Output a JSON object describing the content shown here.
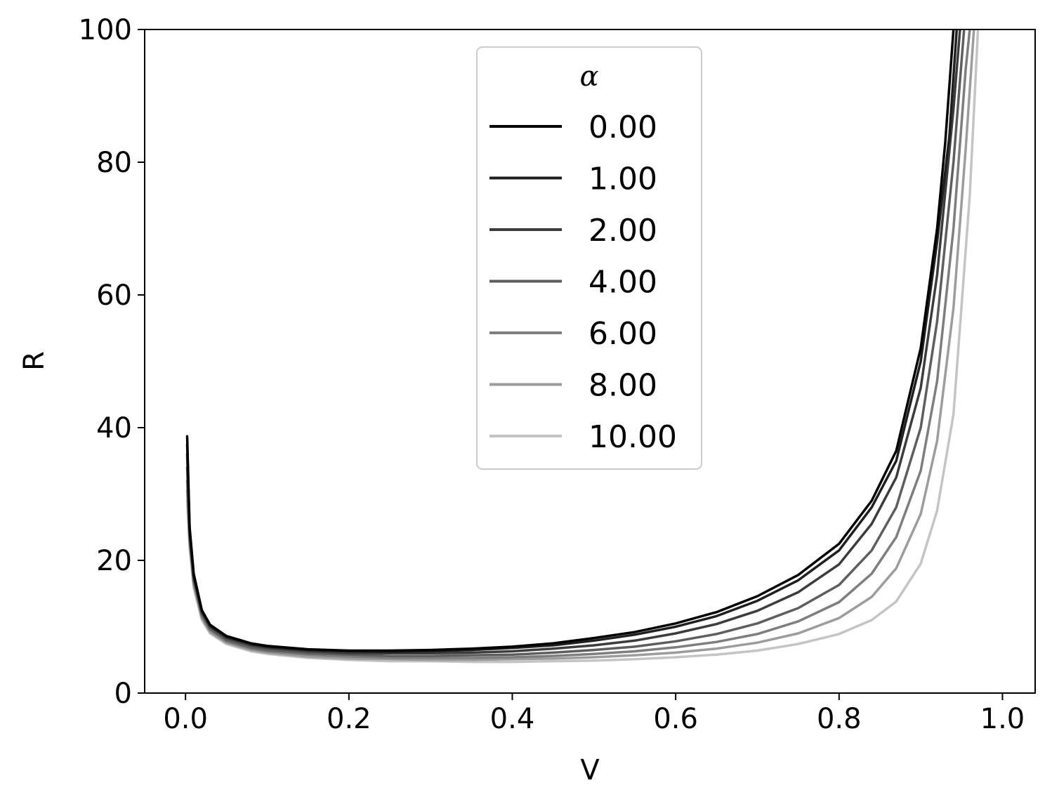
{
  "chart_data": {
    "type": "line",
    "title": "",
    "xlabel": "V",
    "ylabel": "R",
    "xlim": [
      -0.05,
      1.04
    ],
    "ylim": [
      0,
      100
    ],
    "xticks": [
      {
        "value": 0.0,
        "label": "0.0"
      },
      {
        "value": 0.2,
        "label": "0.2"
      },
      {
        "value": 0.4,
        "label": "0.4"
      },
      {
        "value": 0.6,
        "label": "0.6"
      },
      {
        "value": 0.8,
        "label": "0.8"
      },
      {
        "value": 1.0,
        "label": "1.0"
      }
    ],
    "yticks": [
      {
        "value": 0,
        "label": "0"
      },
      {
        "value": 20,
        "label": "20"
      },
      {
        "value": 40,
        "label": "40"
      },
      {
        "value": 60,
        "label": "60"
      },
      {
        "value": 80,
        "label": "80"
      },
      {
        "value": 100,
        "label": "100"
      }
    ],
    "grid": false,
    "legend": {
      "title": "α",
      "placement": "top-center"
    },
    "series": [
      {
        "name": "0.00",
        "color": "#000000",
        "x": [
          0.002,
          0.005,
          0.01,
          0.02,
          0.03,
          0.05,
          0.08,
          0.1,
          0.15,
          0.2,
          0.25,
          0.3,
          0.35,
          0.4,
          0.45,
          0.5,
          0.55,
          0.6,
          0.65,
          0.7,
          0.75,
          0.8,
          0.84,
          0.87,
          0.9,
          0.92,
          0.93,
          0.94
        ],
        "y": [
          38.7,
          25.0,
          18.0,
          12.5,
          10.3,
          8.6,
          7.5,
          7.1,
          6.6,
          6.4,
          6.4,
          6.5,
          6.7,
          7.0,
          7.5,
          8.3,
          9.2,
          10.5,
          12.2,
          14.6,
          17.8,
          22.5,
          29.0,
          36.5,
          52.0,
          70.0,
          83.0,
          100.0
        ]
      },
      {
        "name": "1.00",
        "color": "#1f1f1f",
        "x": [
          0.002,
          0.005,
          0.01,
          0.02,
          0.03,
          0.05,
          0.08,
          0.1,
          0.15,
          0.2,
          0.25,
          0.3,
          0.35,
          0.4,
          0.45,
          0.5,
          0.55,
          0.6,
          0.65,
          0.7,
          0.75,
          0.8,
          0.84,
          0.87,
          0.9,
          0.92,
          0.935,
          0.944
        ],
        "y": [
          37.5,
          24.7,
          17.8,
          12.4,
          10.2,
          8.5,
          7.4,
          7.0,
          6.5,
          6.3,
          6.2,
          6.3,
          6.5,
          6.8,
          7.2,
          7.9,
          8.8,
          10.0,
          11.6,
          13.9,
          17.0,
          21.5,
          28.0,
          35.0,
          50.0,
          68.0,
          84.0,
          100.0
        ]
      },
      {
        "name": "2.00",
        "color": "#3c3c3c",
        "x": [
          0.002,
          0.005,
          0.01,
          0.02,
          0.03,
          0.05,
          0.08,
          0.1,
          0.15,
          0.2,
          0.25,
          0.3,
          0.35,
          0.4,
          0.45,
          0.5,
          0.55,
          0.6,
          0.65,
          0.7,
          0.75,
          0.8,
          0.84,
          0.87,
          0.9,
          0.92,
          0.94,
          0.948
        ],
        "y": [
          36.0,
          24.3,
          17.5,
          12.2,
          10.0,
          8.3,
          7.2,
          6.8,
          6.3,
          6.0,
          6.0,
          6.0,
          6.1,
          6.3,
          6.7,
          7.2,
          7.9,
          9.0,
          10.4,
          12.4,
          15.2,
          19.4,
          25.5,
          32.5,
          46.0,
          63.0,
          88.0,
          100.0
        ]
      },
      {
        "name": "4.00",
        "color": "#5e5e5e",
        "x": [
          0.002,
          0.005,
          0.01,
          0.02,
          0.03,
          0.05,
          0.08,
          0.1,
          0.15,
          0.2,
          0.25,
          0.3,
          0.35,
          0.4,
          0.45,
          0.5,
          0.55,
          0.6,
          0.65,
          0.7,
          0.75,
          0.8,
          0.84,
          0.87,
          0.9,
          0.92,
          0.94,
          0.953
        ],
        "y": [
          34.0,
          23.7,
          17.1,
          11.9,
          9.7,
          8.0,
          6.9,
          6.5,
          6.0,
          5.8,
          5.6,
          5.6,
          5.7,
          5.8,
          6.1,
          6.5,
          7.0,
          7.8,
          8.9,
          10.5,
          12.8,
          16.3,
          21.5,
          28.0,
          40.0,
          56.0,
          80.0,
          100.0
        ]
      },
      {
        "name": "6.00",
        "color": "#7e7e7e",
        "x": [
          0.002,
          0.005,
          0.01,
          0.02,
          0.03,
          0.05,
          0.08,
          0.1,
          0.15,
          0.2,
          0.25,
          0.3,
          0.35,
          0.4,
          0.45,
          0.5,
          0.55,
          0.6,
          0.65,
          0.7,
          0.75,
          0.8,
          0.84,
          0.87,
          0.9,
          0.92,
          0.94,
          0.955,
          0.96
        ],
        "y": [
          32.0,
          23.1,
          16.7,
          11.6,
          9.5,
          7.8,
          6.7,
          6.3,
          5.8,
          5.5,
          5.3,
          5.3,
          5.3,
          5.4,
          5.6,
          5.9,
          6.3,
          6.9,
          7.7,
          8.9,
          10.8,
          13.7,
          18.0,
          23.5,
          33.5,
          47.0,
          70.0,
          94.0,
          100.0
        ]
      },
      {
        "name": "8.00",
        "color": "#9c9c9c",
        "x": [
          0.002,
          0.005,
          0.01,
          0.02,
          0.03,
          0.05,
          0.08,
          0.1,
          0.15,
          0.2,
          0.25,
          0.3,
          0.35,
          0.4,
          0.45,
          0.5,
          0.55,
          0.6,
          0.65,
          0.7,
          0.75,
          0.8,
          0.84,
          0.87,
          0.9,
          0.92,
          0.94,
          0.955,
          0.965
        ],
        "y": [
          30.5,
          22.5,
          16.3,
          11.3,
          9.2,
          7.6,
          6.5,
          6.1,
          5.5,
          5.2,
          5.1,
          5.0,
          5.0,
          5.1,
          5.2,
          5.4,
          5.7,
          6.1,
          6.7,
          7.6,
          9.0,
          11.3,
          14.5,
          18.8,
          27.0,
          38.0,
          58.0,
          82.0,
          100.0
        ]
      },
      {
        "name": "10.00",
        "color": "#c4c4c4",
        "x": [
          0.002,
          0.005,
          0.01,
          0.02,
          0.03,
          0.05,
          0.08,
          0.1,
          0.15,
          0.2,
          0.25,
          0.3,
          0.35,
          0.4,
          0.45,
          0.5,
          0.55,
          0.6,
          0.65,
          0.7,
          0.75,
          0.8,
          0.84,
          0.87,
          0.9,
          0.92,
          0.94,
          0.96,
          0.97
        ],
        "y": [
          29.0,
          22.0,
          15.9,
          11.0,
          9.0,
          7.4,
          6.3,
          5.9,
          5.3,
          5.0,
          4.8,
          4.8,
          4.7,
          4.7,
          4.8,
          4.9,
          5.1,
          5.4,
          5.8,
          6.4,
          7.4,
          8.9,
          11.0,
          13.8,
          19.5,
          27.5,
          42.0,
          75.0,
          100.0
        ]
      }
    ]
  }
}
